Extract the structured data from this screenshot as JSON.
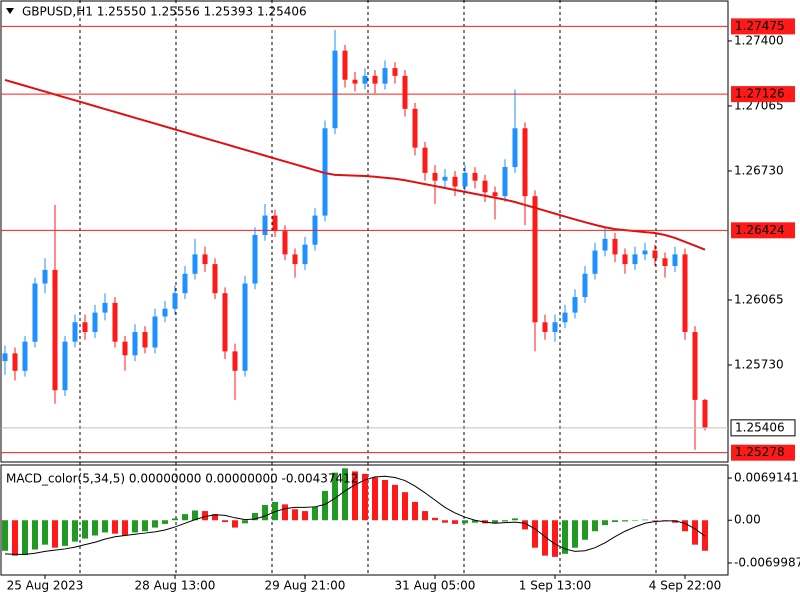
{
  "chart_data": {
    "type": "candlestick",
    "header": "GBPUSD,H1  1.25550 1.25556 1.25393 1.25406",
    "up_color": "#1e90ff",
    "down_color": "#ff1a1a",
    "ylim": [
      1.2523,
      1.27611
    ],
    "yticks": [
      {
        "value": 1.274,
        "label": "1.27400"
      },
      1.27065,
      {
        "value": 1.2673,
        "label": "1.26730"
      },
      1.26065,
      {
        "value": 1.2573,
        "label": "1.25730"
      }
    ],
    "levels": [
      {
        "value": 1.27475,
        "color": "#ff1a1a"
      },
      {
        "value": 1.27126,
        "color": "#ff1a1a"
      },
      {
        "value": 1.26424,
        "color": "#ff1a1a"
      },
      {
        "value": 1.25278,
        "color": "#ff1a1a"
      }
    ],
    "current_price": {
      "value": 1.25406,
      "color": "#c0c0c0"
    },
    "categories": [
      null,
      null,
      null,
      null,
      "25 Aug 2023",
      null,
      null,
      null,
      null,
      null,
      null,
      null,
      null,
      null,
      null,
      null,
      null,
      "28 Aug 13:00",
      null,
      null,
      null,
      null,
      null,
      null,
      null,
      null,
      null,
      null,
      null,
      null,
      "29 Aug 21:00",
      null,
      null,
      null,
      null,
      null,
      null,
      null,
      null,
      null,
      null,
      null,
      null,
      "31 Aug 05:00",
      null,
      null,
      null,
      null,
      null,
      null,
      null,
      null,
      null,
      null,
      null,
      "1 Sep 13:00",
      null,
      null,
      null,
      null,
      null,
      null,
      null,
      null,
      null,
      null,
      null,
      null,
      "4 Sep 22:00",
      null,
      null
    ],
    "candles": [
      [
        1.2575,
        1.2583,
        1.2568,
        1.2579
      ],
      [
        1.2579,
        1.2582,
        1.2565,
        1.257
      ],
      [
        1.257,
        1.2588,
        1.2567,
        1.2585
      ],
      [
        1.2585,
        1.2618,
        1.2582,
        1.2615
      ],
      [
        1.2615,
        1.2628,
        1.261,
        1.2622
      ],
      [
        1.2622,
        1.26555,
        1.2553,
        1.256
      ],
      [
        1.256,
        1.2588,
        1.2557,
        1.2585
      ],
      [
        1.2585,
        1.2599,
        1.2582,
        1.2595
      ],
      [
        1.2595,
        1.2599,
        1.2586,
        1.259
      ],
      [
        1.259,
        1.2604,
        1.2587,
        1.26
      ],
      [
        1.26,
        1.261,
        1.2596,
        1.2605
      ],
      [
        1.2605,
        1.2608,
        1.2582,
        1.2585
      ],
      [
        1.2585,
        1.2588,
        1.257,
        1.2578
      ],
      [
        1.2578,
        1.2594,
        1.2575,
        1.259
      ],
      [
        1.259,
        1.2593,
        1.2579,
        1.2582
      ],
      [
        1.2582,
        1.2602,
        1.2579,
        1.2598
      ],
      [
        1.2598,
        1.2606,
        1.2595,
        1.2602
      ],
      [
        1.2602,
        1.2614,
        1.2599,
        1.261
      ],
      [
        1.261,
        1.2624,
        1.2607,
        1.262
      ],
      [
        1.262,
        1.2638,
        1.2617,
        1.263
      ],
      [
        1.263,
        1.2634,
        1.2621,
        1.2625
      ],
      [
        1.2625,
        1.2628,
        1.2607,
        1.261
      ],
      [
        1.261,
        1.2613,
        1.2576,
        1.258
      ],
      [
        1.258,
        1.2584,
        1.2555,
        1.257
      ],
      [
        1.257,
        1.2619,
        1.2567,
        1.2615
      ],
      [
        1.2615,
        1.2644,
        1.2612,
        1.264
      ],
      [
        1.264,
        1.2656,
        1.2637,
        1.265
      ],
      [
        1.265,
        1.2653,
        1.2639,
        1.2642
      ],
      [
        1.2642,
        1.2645,
        1.2627,
        1.263
      ],
      [
        1.263,
        1.2633,
        1.2618,
        1.2625
      ],
      [
        1.2625,
        1.2639,
        1.2622,
        1.2635
      ],
      [
        1.2635,
        1.2654,
        1.2632,
        1.265
      ],
      [
        1.265,
        1.2699,
        1.2647,
        1.2695
      ],
      [
        1.2695,
        1.27457,
        1.2692,
        1.2735
      ],
      [
        1.2735,
        1.2738,
        1.2716,
        1.272
      ],
      [
        1.272,
        1.2724,
        1.2714,
        1.2718
      ],
      [
        1.2718,
        1.2726,
        1.2715,
        1.2722
      ],
      [
        1.2722,
        1.2725,
        1.2713,
        1.2718
      ],
      [
        1.2718,
        1.273,
        1.2715,
        1.2726
      ],
      [
        1.2726,
        1.2729,
        1.2718,
        1.2722
      ],
      [
        1.2722,
        1.2725,
        1.2701,
        1.2705
      ],
      [
        1.2705,
        1.2708,
        1.2681,
        1.2685
      ],
      [
        1.2685,
        1.2688,
        1.2668,
        1.2672
      ],
      [
        1.2672,
        1.2676,
        1.2656,
        1.2668
      ],
      [
        1.2668,
        1.2674,
        1.2664,
        1.267
      ],
      [
        1.267,
        1.2673,
        1.266,
        1.2665
      ],
      [
        1.2665,
        1.2676,
        1.2662,
        1.2672
      ],
      [
        1.2672,
        1.2675,
        1.2664,
        1.2668
      ],
      [
        1.2668,
        1.2671,
        1.2657,
        1.2662
      ],
      [
        1.2662,
        1.2665,
        1.2648,
        1.266
      ],
      [
        1.266,
        1.2679,
        1.2657,
        1.2675
      ],
      [
        1.2675,
        1.2715,
        1.2672,
        1.2695
      ],
      [
        1.2695,
        1.2698,
        1.2645,
        1.266
      ],
      [
        1.266,
        1.2663,
        1.258,
        1.2595
      ],
      [
        1.2595,
        1.2599,
        1.2586,
        1.259
      ],
      [
        1.259,
        1.2599,
        1.2585,
        1.2595
      ],
      [
        1.2595,
        1.2604,
        1.2592,
        1.26
      ],
      [
        1.26,
        1.2612,
        1.2597,
        1.2608
      ],
      [
        1.2608,
        1.2624,
        1.2605,
        1.262
      ],
      [
        1.262,
        1.2636,
        1.2617,
        1.2632
      ],
      [
        1.2632,
        1.2644,
        1.2629,
        1.2638
      ],
      [
        1.2638,
        1.2641,
        1.2626,
        1.263
      ],
      [
        1.263,
        1.2633,
        1.262,
        1.2625
      ],
      [
        1.2625,
        1.2634,
        1.2622,
        1.263
      ],
      [
        1.263,
        1.2636,
        1.2627,
        1.2632
      ],
      [
        1.2632,
        1.2635,
        1.2624,
        1.2628
      ],
      [
        1.2628,
        1.2631,
        1.2618,
        1.2624
      ],
      [
        1.2624,
        1.2634,
        1.2621,
        1.263
      ],
      [
        1.263,
        1.2633,
        1.2586,
        1.259
      ],
      [
        1.259,
        1.2593,
        1.25293,
        1.2555
      ],
      [
        1.2555,
        1.25556,
        1.25393,
        1.25406
      ]
    ],
    "ma": {
      "color": "#e01010",
      "values": [
        1.27199,
        1.27184,
        1.27169,
        1.27154,
        1.27139,
        1.27124,
        1.27109,
        1.27094,
        1.27079,
        1.27064,
        1.27049,
        1.27034,
        1.27019,
        1.27004,
        1.26989,
        1.26974,
        1.26959,
        1.26944,
        1.26929,
        1.26914,
        1.26899,
        1.26884,
        1.26869,
        1.26854,
        1.26839,
        1.26824,
        1.26809,
        1.26794,
        1.26779,
        1.26764,
        1.26749,
        1.26734,
        1.26719,
        1.2671,
        1.26708,
        1.26706,
        1.26704,
        1.267,
        1.26695,
        1.2669,
        1.26682,
        1.26672,
        1.26662,
        1.26652,
        1.26642,
        1.26632,
        1.26622,
        1.26612,
        1.26602,
        1.26592,
        1.26582,
        1.2657,
        1.26555,
        1.2654,
        1.26525,
        1.2651,
        1.26495,
        1.2648,
        1.26466,
        1.26452,
        1.2644,
        1.2643,
        1.26425,
        1.2642,
        1.26415,
        1.2641,
        1.264,
        1.26385,
        1.26365,
        1.26345,
        1.26324
      ]
    },
    "macd": {
      "title": "MACD_color(5,34,5) 0.00000000 0.00000000 -0.00437412",
      "ylim": [
        -0.00897,
        0.00905
      ],
      "yticks": [
        0.0069141,
        {
          "value": 0,
          "label": "0.00"
        },
        -0.0069987
      ],
      "up_color": "#229922",
      "down_color": "#ff1a1a",
      "histogram": [
        -0.005,
        -0.0058,
        -0.0057,
        -0.0048,
        -0.004,
        -0.0045,
        -0.0042,
        -0.0035,
        -0.003,
        -0.0025,
        -0.002,
        -0.0022,
        -0.0025,
        -0.002,
        -0.0018,
        -0.0012,
        -0.0006,
        0.0003,
        0.001,
        0.0016,
        0.0015,
        0.001,
        -0.0003,
        -0.0012,
        -0.0005,
        0.0012,
        0.0025,
        0.003,
        0.0026,
        0.0018,
        0.0015,
        0.0022,
        0.0048,
        0.0078,
        0.0085,
        0.008,
        0.0076,
        0.007,
        0.0066,
        0.0058,
        0.0046,
        0.003,
        0.0015,
        0.0004,
        -0.0004,
        -0.0006,
        -0.0005,
        -0.0004,
        -0.0005,
        -0.0005,
        -0.0002,
        0.0003,
        -0.0015,
        -0.0045,
        -0.0058,
        -0.006,
        -0.0055,
        -0.0045,
        -0.0032,
        -0.0018,
        -0.0008,
        -0.0003,
        -0.0002,
        0.0,
        0.0001,
        0.0,
        -0.0001,
        -0.0004,
        -0.0018,
        -0.004,
        -0.005
      ],
      "signal": {
        "color": "#000000",
        "values": [
          -0.0055,
          -0.0056,
          -0.0056,
          -0.0054,
          -0.0051,
          -0.0049,
          -0.0047,
          -0.0044,
          -0.004,
          -0.0036,
          -0.0031,
          -0.0027,
          -0.0025,
          -0.0023,
          -0.0021,
          -0.0019,
          -0.0016,
          -0.0011,
          -0.0005,
          0.0001,
          0.0006,
          0.0009,
          0.0008,
          0.0004,
          0.0001,
          0.0002,
          0.0007,
          0.0014,
          0.0019,
          0.0021,
          0.0021,
          0.0022,
          0.0026,
          0.0036,
          0.0048,
          0.0058,
          0.0066,
          0.0071,
          0.0072,
          0.007,
          0.0065,
          0.0056,
          0.0045,
          0.0033,
          0.0021,
          0.0012,
          0.0005,
          0.0,
          -0.0003,
          -0.0005,
          -0.0004,
          -0.0003,
          -0.0005,
          -0.0014,
          -0.0027,
          -0.0039,
          -0.0047,
          -0.0051,
          -0.005,
          -0.0045,
          -0.0037,
          -0.0027,
          -0.0018,
          -0.0011,
          -0.0005,
          -0.0002,
          -0.0001,
          -0.0001,
          -0.0005,
          -0.0014,
          -0.0026
        ]
      }
    }
  }
}
